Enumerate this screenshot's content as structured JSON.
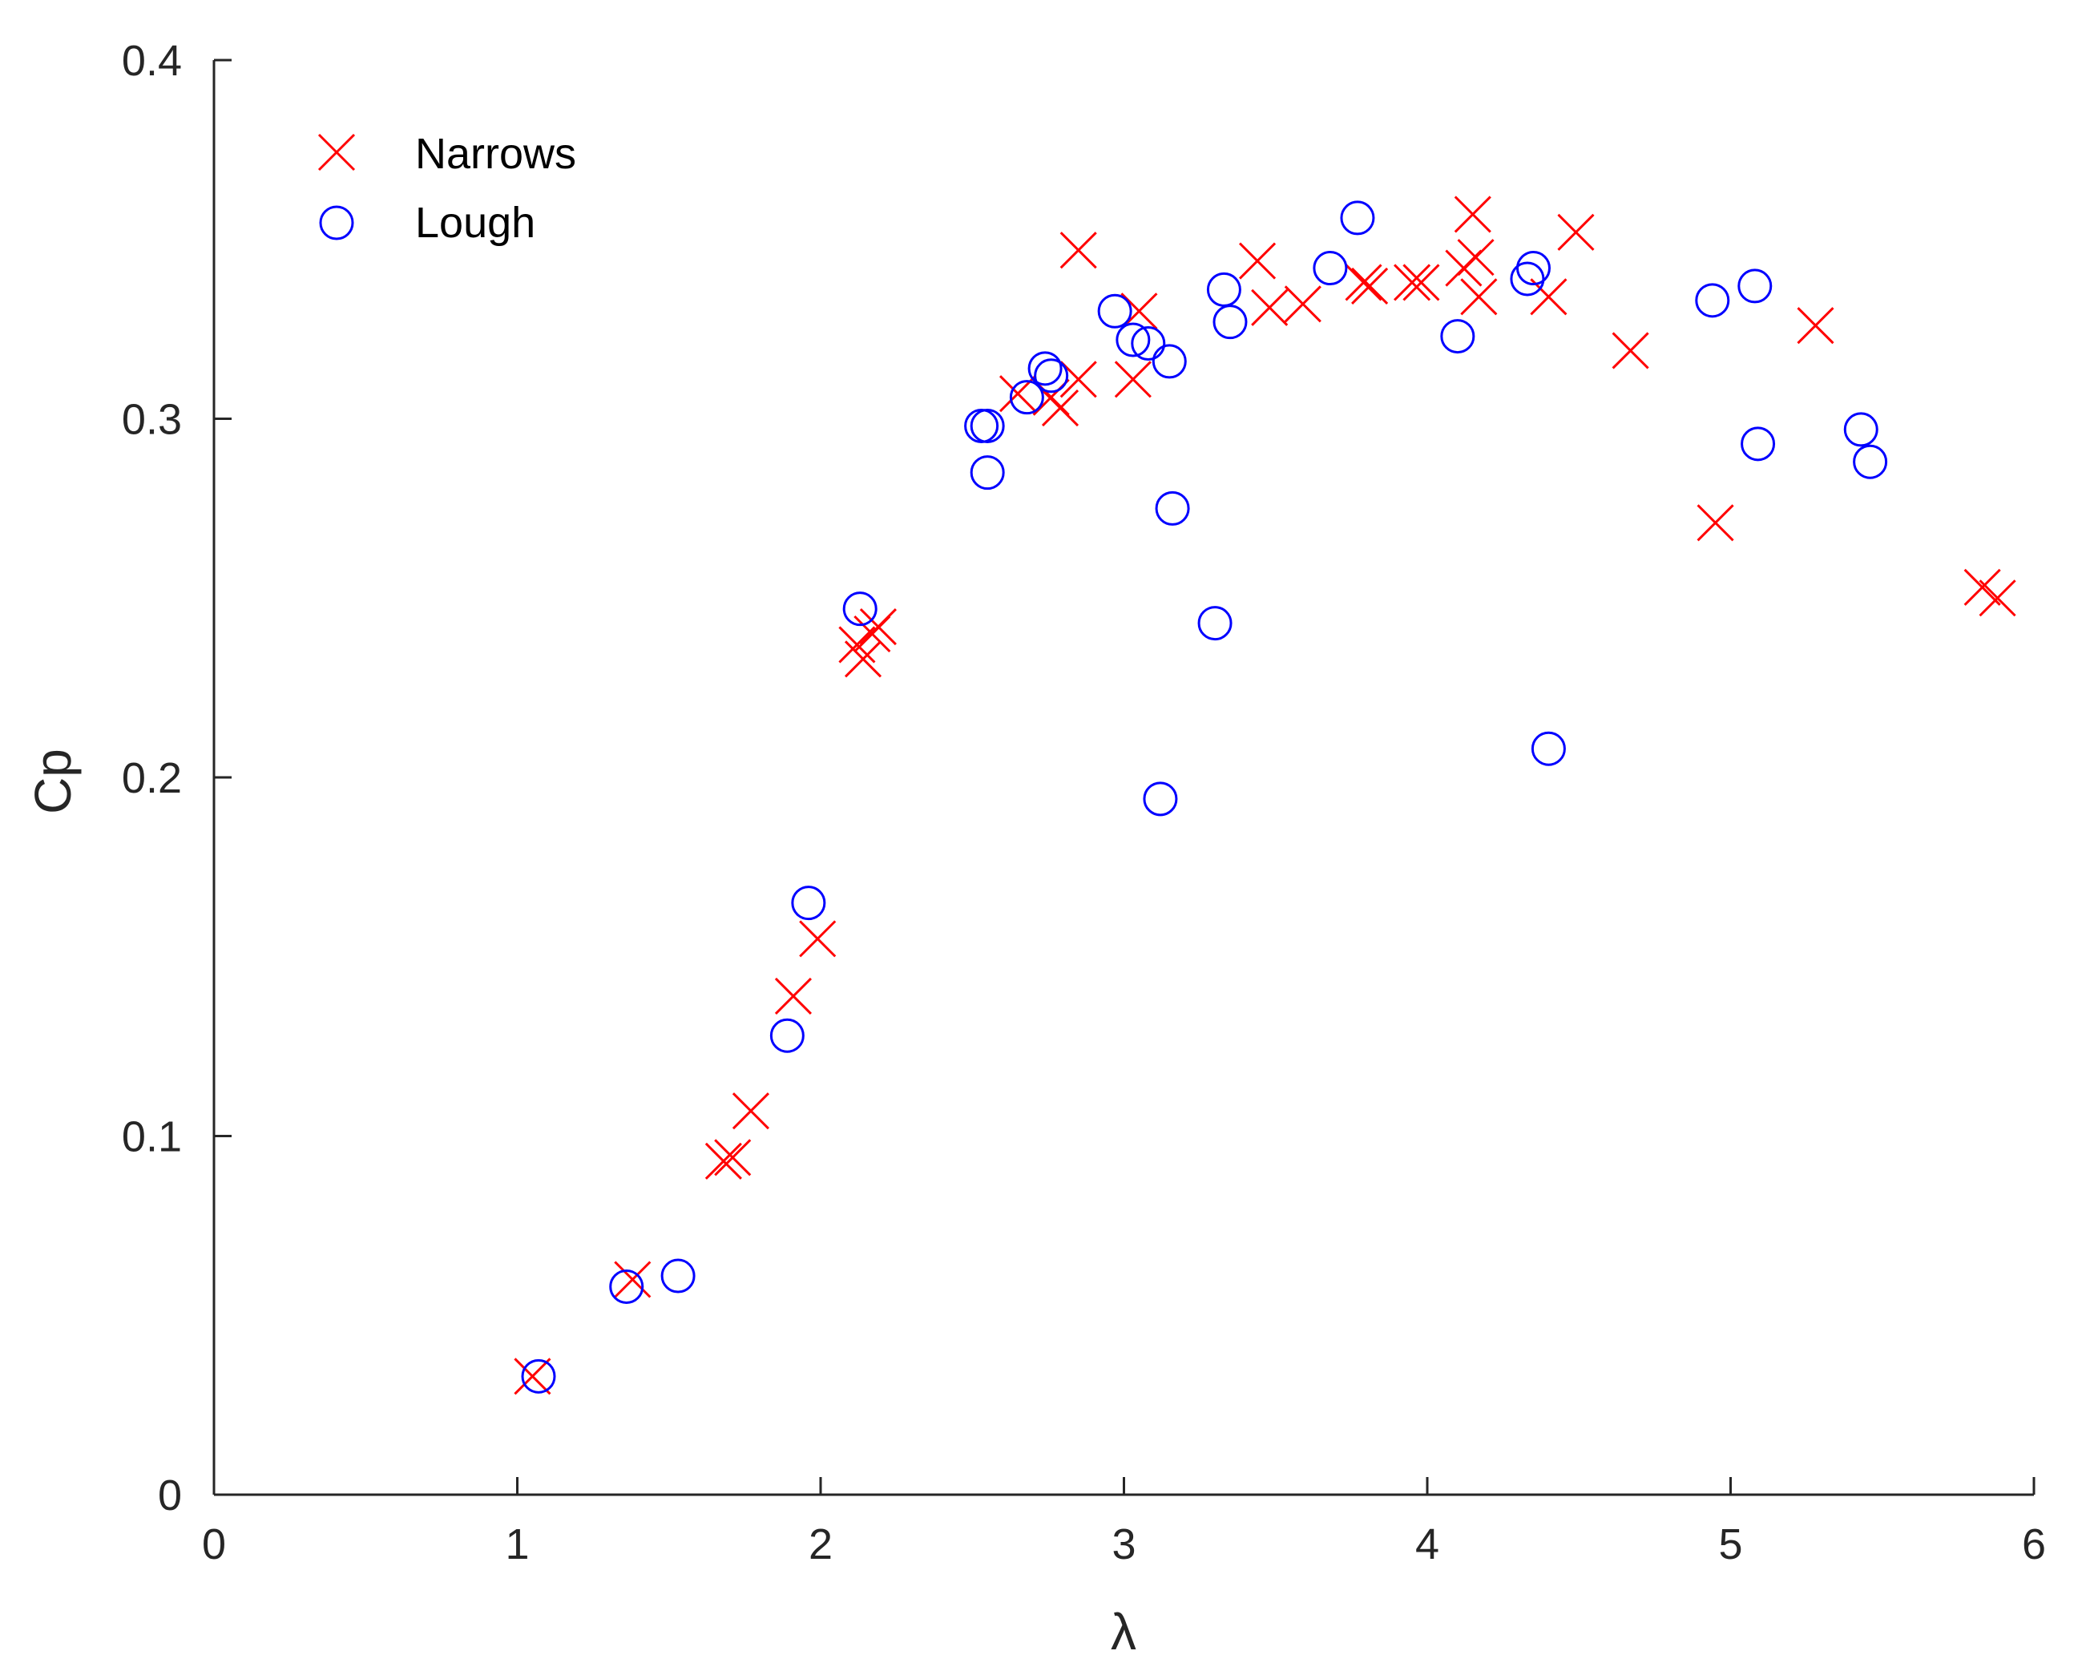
{
  "chart_data": {
    "type": "scatter",
    "xlabel": "λ",
    "ylabel": "Cp",
    "xlim": [
      0,
      6
    ],
    "ylim": [
      0,
      0.4
    ],
    "xticks": [
      0,
      1,
      2,
      3,
      4,
      5,
      6
    ],
    "yticks": [
      0,
      0.1,
      0.2,
      0.3,
      0.4
    ],
    "xtick_labels": [
      "0",
      "1",
      "2",
      "3",
      "4",
      "5",
      "6"
    ],
    "ytick_labels": [
      "0",
      "0.1",
      "0.2",
      "0.3",
      "0.4"
    ],
    "grid": false,
    "legend_position": "top-left",
    "series": [
      {
        "name": "Narrows",
        "marker": "x",
        "color": "#ff0000",
        "points": [
          [
            1.05,
            0.033
          ],
          [
            1.38,
            0.06
          ],
          [
            1.68,
            0.093
          ],
          [
            1.71,
            0.094
          ],
          [
            1.77,
            0.107
          ],
          [
            1.91,
            0.139
          ],
          [
            1.99,
            0.155
          ],
          [
            2.12,
            0.237
          ],
          [
            2.14,
            0.233
          ],
          [
            2.17,
            0.24
          ],
          [
            2.19,
            0.242
          ],
          [
            2.65,
            0.307
          ],
          [
            2.76,
            0.306
          ],
          [
            2.79,
            0.303
          ],
          [
            2.85,
            0.311
          ],
          [
            2.85,
            0.347
          ],
          [
            3.03,
            0.311
          ],
          [
            3.05,
            0.33
          ],
          [
            3.44,
            0.344
          ],
          [
            3.48,
            0.331
          ],
          [
            3.59,
            0.332
          ],
          [
            3.79,
            0.338
          ],
          [
            3.81,
            0.337
          ],
          [
            3.95,
            0.338
          ],
          [
            3.98,
            0.338
          ],
          [
            4.12,
            0.342
          ],
          [
            4.15,
            0.357
          ],
          [
            4.16,
            0.345
          ],
          [
            4.17,
            0.334
          ],
          [
            4.4,
            0.334
          ],
          [
            4.49,
            0.352
          ],
          [
            4.67,
            0.319
          ],
          [
            4.95,
            0.271
          ],
          [
            5.28,
            0.326
          ],
          [
            5.83,
            0.253
          ],
          [
            5.88,
            0.25
          ]
        ]
      },
      {
        "name": "Lough",
        "marker": "o",
        "color": "#0000ff",
        "points": [
          [
            1.07,
            0.033
          ],
          [
            1.36,
            0.058
          ],
          [
            1.53,
            0.061
          ],
          [
            1.89,
            0.128
          ],
          [
            1.96,
            0.165
          ],
          [
            2.13,
            0.247
          ],
          [
            2.53,
            0.298
          ],
          [
            2.55,
            0.298
          ],
          [
            2.55,
            0.285
          ],
          [
            2.68,
            0.306
          ],
          [
            2.74,
            0.314
          ],
          [
            2.76,
            0.312
          ],
          [
            2.97,
            0.33
          ],
          [
            3.03,
            0.322
          ],
          [
            3.08,
            0.321
          ],
          [
            3.12,
            0.194
          ],
          [
            3.15,
            0.316
          ],
          [
            3.16,
            0.275
          ],
          [
            3.3,
            0.243
          ],
          [
            3.33,
            0.336
          ],
          [
            3.35,
            0.327
          ],
          [
            3.68,
            0.342
          ],
          [
            3.77,
            0.356
          ],
          [
            4.1,
            0.323
          ],
          [
            4.33,
            0.339
          ],
          [
            4.35,
            0.342
          ],
          [
            4.4,
            0.208
          ],
          [
            4.94,
            0.333
          ],
          [
            5.08,
            0.337
          ],
          [
            5.09,
            0.293
          ],
          [
            5.43,
            0.297
          ],
          [
            5.46,
            0.288
          ]
        ]
      }
    ]
  }
}
